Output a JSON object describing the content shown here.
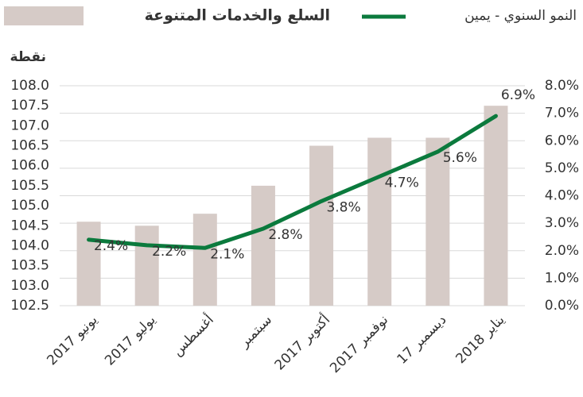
{
  "chart_data": {
    "type": "bar-line",
    "y_label": "نقطة",
    "categories": [
      "يونيو 2017",
      "يوليو 2017",
      "أغسطس",
      "سبتمبر",
      "أكتوبر 2017",
      "نوفمبر 2017",
      "ديسمبر 17",
      "يناير 2018"
    ],
    "series": [
      {
        "name": "السلع والخدمات المتنوعة",
        "type": "bar",
        "color": "#d6cbc7",
        "values": [
          104.6,
          104.5,
          104.8,
          105.5,
          106.5,
          106.7,
          106.7,
          107.5
        ]
      },
      {
        "name": "النمو السنوي - يمين",
        "type": "line",
        "axis": "y2",
        "color": "#0b7a3d",
        "values": [
          2.4,
          2.2,
          2.1,
          2.8,
          3.8,
          4.7,
          5.6,
          6.9
        ],
        "value_labels": [
          "2.4%",
          "2.2%",
          "2.1%",
          "2.8%",
          "3.8%",
          "4.7%",
          "5.6%",
          "6.9%"
        ]
      }
    ],
    "ylim": [
      102.5,
      108
    ],
    "yticks": [
      102.5,
      {
        "value": 103,
        "label": "103.0"
      },
      103.5,
      {
        "value": 104,
        "label": "104.0"
      },
      104.5,
      {
        "value": 105,
        "label": "105.0"
      },
      105.5,
      {
        "value": 106,
        "label": "106.0"
      },
      106.5,
      {
        "value": 107,
        "label": "107.0"
      },
      107.5,
      {
        "value": 108,
        "label": "108.0"
      }
    ],
    "y2lim": [
      0,
      8
    ],
    "y2ticks": [
      {
        "value": 0,
        "label": "0.0%"
      },
      {
        "value": 1,
        "label": "1.0%"
      },
      {
        "value": 2,
        "label": "2.0%"
      },
      {
        "value": 3,
        "label": "3.0%"
      },
      {
        "value": 4,
        "label": "4.0%"
      },
      {
        "value": 5,
        "label": "5.0%"
      },
      {
        "value": 6,
        "label": "6.0%"
      },
      {
        "value": 7,
        "label": "7.0%"
      },
      {
        "value": 8,
        "label": "8.0%"
      }
    ],
    "grid": true
  }
}
